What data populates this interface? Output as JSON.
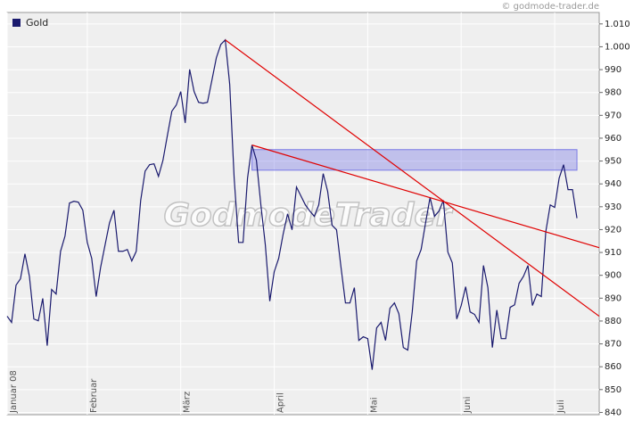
{
  "chart_data": {
    "type": "line",
    "source": "© godmode-trader.de",
    "watermark": "GodmodeTrader",
    "x": [
      0,
      1,
      2,
      3,
      4,
      5,
      6,
      7,
      8,
      9,
      10,
      11,
      12,
      13,
      14,
      15,
      16,
      17,
      18,
      19,
      20,
      21,
      22,
      23,
      24,
      25,
      26,
      27,
      28,
      29,
      30,
      31,
      32,
      33,
      34,
      35,
      36,
      37,
      38,
      39,
      40,
      41,
      42,
      43,
      44,
      45,
      46,
      47,
      48,
      49,
      50,
      51,
      52,
      53,
      54,
      55,
      56,
      57,
      58,
      59,
      60,
      61,
      62,
      63,
      64,
      65,
      66,
      67,
      68,
      69,
      70,
      71,
      72,
      73,
      74,
      75,
      76,
      77,
      78,
      79,
      80,
      81,
      82,
      83,
      84,
      85,
      86,
      87,
      88,
      89,
      90,
      91,
      92,
      93,
      94,
      95,
      96,
      97,
      98,
      99,
      100,
      101,
      102,
      103,
      104,
      105,
      106,
      107,
      108,
      109,
      110,
      111,
      112,
      113,
      114,
      115,
      116,
      117,
      118,
      119,
      120,
      121,
      122,
      123,
      124,
      125,
      126,
      127,
      128
    ],
    "series": [
      {
        "name": "Gold",
        "color": "#1a1a6e",
        "values": [
          882.1,
          879.4,
          895.7,
          898.5,
          909.4,
          899.6,
          880.9,
          880.1,
          889.9,
          869.2,
          893.8,
          891.8,
          910.5,
          917.2,
          931.6,
          932.4,
          932,
          928.5,
          914.4,
          907.4,
          890.7,
          903.5,
          913.3,
          923,
          928.5,
          910.5,
          910.5,
          911.3,
          906.3,
          910.5,
          932.8,
          945.6,
          948.4,
          948.8,
          943.3,
          950.3,
          961.2,
          971.8,
          974.5,
          980.4,
          966.7,
          990.1,
          980.4,
          975.7,
          975.3,
          975.7,
          985.4,
          995.2,
          1001,
          1003,
          983.5,
          942.5,
          914.4,
          914.4,
          942.5,
          957,
          950.3,
          930.8,
          913.3,
          888.7,
          901.6,
          907.4,
          918,
          926.9,
          919.9,
          938.6,
          934.7,
          930.8,
          928.1,
          925.8,
          930.8,
          944.5,
          936.7,
          921.9,
          919.9,
          903.5,
          887.9,
          887.9,
          894.6,
          871.5,
          873.1,
          872.3,
          858.7,
          877,
          879.4,
          871.5,
          885.6,
          887.9,
          883.2,
          868.4,
          867.3,
          884,
          906.3,
          911.3,
          923,
          934,
          925.8,
          928.1,
          932.8,
          910.2,
          905.5,
          880.9,
          886.8,
          895,
          884,
          882.9,
          879.4,
          904.3,
          894.6,
          868.4,
          884.8,
          872.3,
          872.3,
          886,
          887.1,
          896.5,
          899.6,
          904.3,
          886.8,
          891.8,
          890.7,
          919.1,
          930.8,
          929.7,
          942.5,
          948.4,
          937.5,
          937.5,
          925
        ]
      }
    ],
    "xlim": [
      0,
      133
    ],
    "xticks": [
      {
        "value": 0,
        "label": "Januar 08"
      },
      {
        "value": 18,
        "label": "Februar"
      },
      {
        "value": 39,
        "label": "März"
      },
      {
        "value": 60,
        "label": "April"
      },
      {
        "value": 81,
        "label": "Mai"
      },
      {
        "value": 102,
        "label": "Juni"
      },
      {
        "value": 123,
        "label": "Juli"
      }
    ],
    "ylim": [
      839,
      1015
    ],
    "yticks": [
      840,
      850,
      860,
      870,
      880,
      890,
      900,
      910,
      920,
      930,
      940,
      950,
      960,
      970,
      980,
      990,
      {
        "value": 1000,
        "label": "1.000"
      },
      {
        "value": 1010,
        "label": "1.010"
      }
    ],
    "grid": true,
    "legend": "top-left",
    "trendlines": [
      {
        "x": [
          49,
          133
        ],
        "y": [
          1003,
          882.1
        ],
        "color": "#e00000"
      },
      {
        "x": [
          55,
          133
        ],
        "y": [
          957,
          912.1
        ],
        "color": "#e00000"
      }
    ],
    "band": {
      "x": [
        55,
        128
      ],
      "y": [
        946,
        955
      ],
      "color": "#7b7be6"
    }
  }
}
